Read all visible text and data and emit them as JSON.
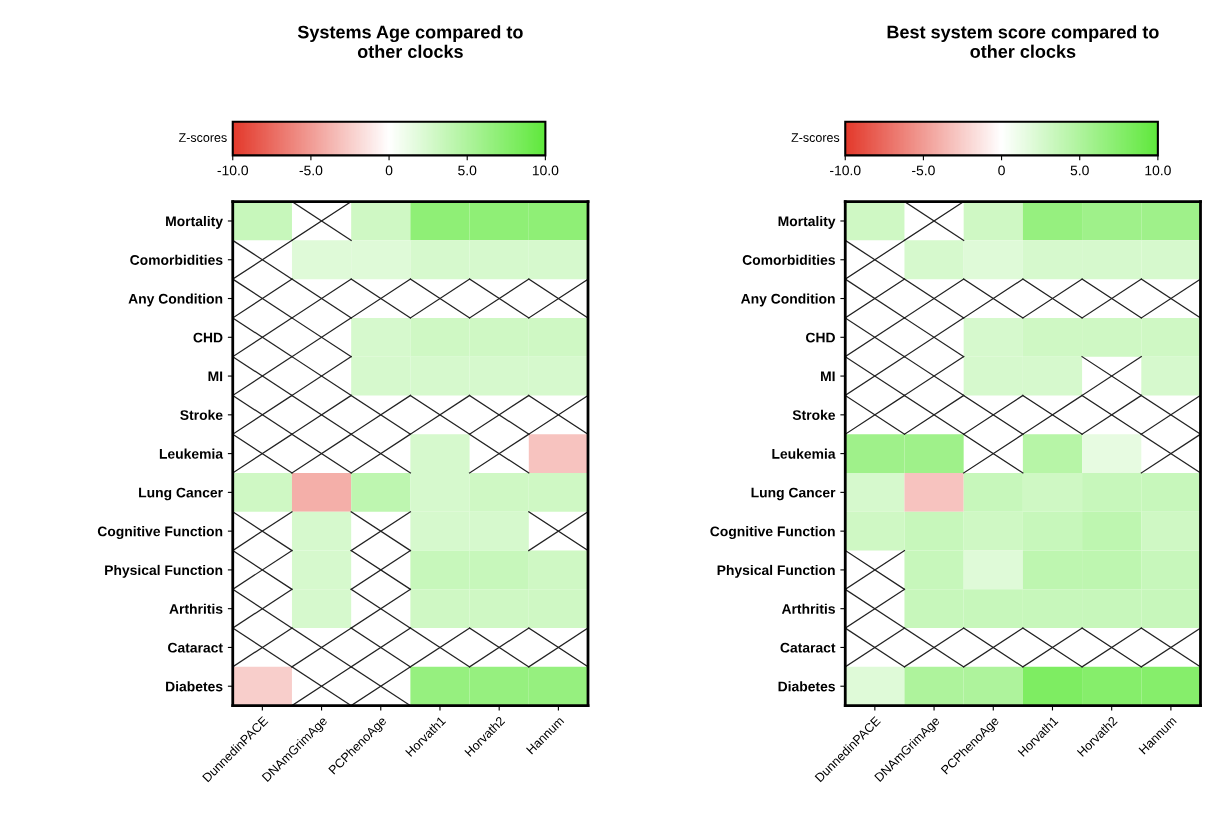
{
  "chart_data": [
    {
      "type": "heatmap",
      "title": "Systems Age compared to\nother clocks",
      "clabel": "Z-scores",
      "clim": [
        -10,
        10
      ],
      "cticks": [
        {
          "value": -10,
          "label": "-10.0"
        },
        {
          "value": -5,
          "label": "-5.0"
        },
        0,
        {
          "value": 5,
          "label": "5.0"
        },
        {
          "value": 10,
          "label": "10.0"
        }
      ],
      "categories": [
        "DunnedinPACE",
        "DNAmGrimAge",
        "PCPhenoAge",
        "Horvath1",
        "Horvath2",
        "Hannum"
      ],
      "y_categories": [
        "Mortality",
        "Comorbidities",
        "Any Condition",
        "CHD",
        "MI",
        "Stroke",
        "Leukemia",
        "Lung Cancer",
        "Cognitive Function",
        "Physical Function",
        "Arthritis",
        "Cataract",
        "Diabetes"
      ],
      "cells": [
        [
          3.5,
          null,
          3,
          7,
          7,
          7
        ],
        [
          null,
          2,
          2,
          2.5,
          2.5,
          2.5
        ],
        [
          null,
          null,
          null,
          null,
          null,
          null
        ],
        [
          null,
          null,
          2.5,
          3,
          3,
          3
        ],
        [
          null,
          null,
          2.5,
          2.5,
          2.5,
          2.5
        ],
        [
          null,
          null,
          null,
          null,
          null,
          null
        ],
        [
          null,
          null,
          null,
          2.5,
          null,
          -3
        ],
        [
          3,
          -4,
          4,
          2.5,
          3,
          3
        ],
        [
          null,
          2.5,
          null,
          2.5,
          2.5,
          null
        ],
        [
          null,
          2.5,
          null,
          3.5,
          3.5,
          3
        ],
        [
          null,
          2.5,
          null,
          3,
          3,
          3
        ],
        [
          null,
          null,
          null,
          null,
          null,
          null
        ],
        [
          -2.5,
          null,
          null,
          6.5,
          6.5,
          6.5
        ]
      ]
    },
    {
      "type": "heatmap",
      "title": "Best system score compared to\nother clocks",
      "clabel": "Z-scores",
      "clim": [
        -10,
        10
      ],
      "cticks": [
        {
          "value": -10,
          "label": "-10.0"
        },
        {
          "value": -5,
          "label": "-5.0"
        },
        0,
        {
          "value": 5,
          "label": "5.0"
        },
        {
          "value": 10,
          "label": "10.0"
        }
      ],
      "categories": [
        "DunnedinPACE",
        "DNAmGrimAge",
        "PCPhenoAge",
        "Horvath1",
        "Horvath2",
        "Hannum"
      ],
      "y_categories": [
        "Mortality",
        "Comorbidities",
        "Any Condition",
        "CHD",
        "MI",
        "Stroke",
        "Leukemia",
        "Lung Cancer",
        "Cognitive Function",
        "Physical Function",
        "Arthritis",
        "Cataract",
        "Diabetes"
      ],
      "cells": [
        [
          3,
          null,
          3,
          6.5,
          6,
          6
        ],
        [
          null,
          2.5,
          2,
          2.5,
          2.5,
          2.5
        ],
        [
          null,
          null,
          null,
          null,
          null,
          null
        ],
        [
          null,
          null,
          2.5,
          3,
          3,
          3
        ],
        [
          null,
          null,
          2.5,
          2.5,
          null,
          2.5
        ],
        [
          null,
          null,
          null,
          null,
          null,
          null
        ],
        [
          6,
          6,
          null,
          4.5,
          1.5,
          null
        ],
        [
          2.5,
          -3,
          3.5,
          3,
          3.5,
          3.5
        ],
        [
          3,
          3.5,
          3,
          3.5,
          4,
          3
        ],
        [
          null,
          3.5,
          2,
          4,
          4,
          3.5
        ],
        [
          null,
          3.5,
          3.5,
          3.5,
          3.5,
          3.5
        ],
        [
          null,
          null,
          null,
          null,
          null,
          null
        ],
        [
          2,
          5,
          5,
          8,
          7.5,
          7.5
        ]
      ]
    }
  ]
}
